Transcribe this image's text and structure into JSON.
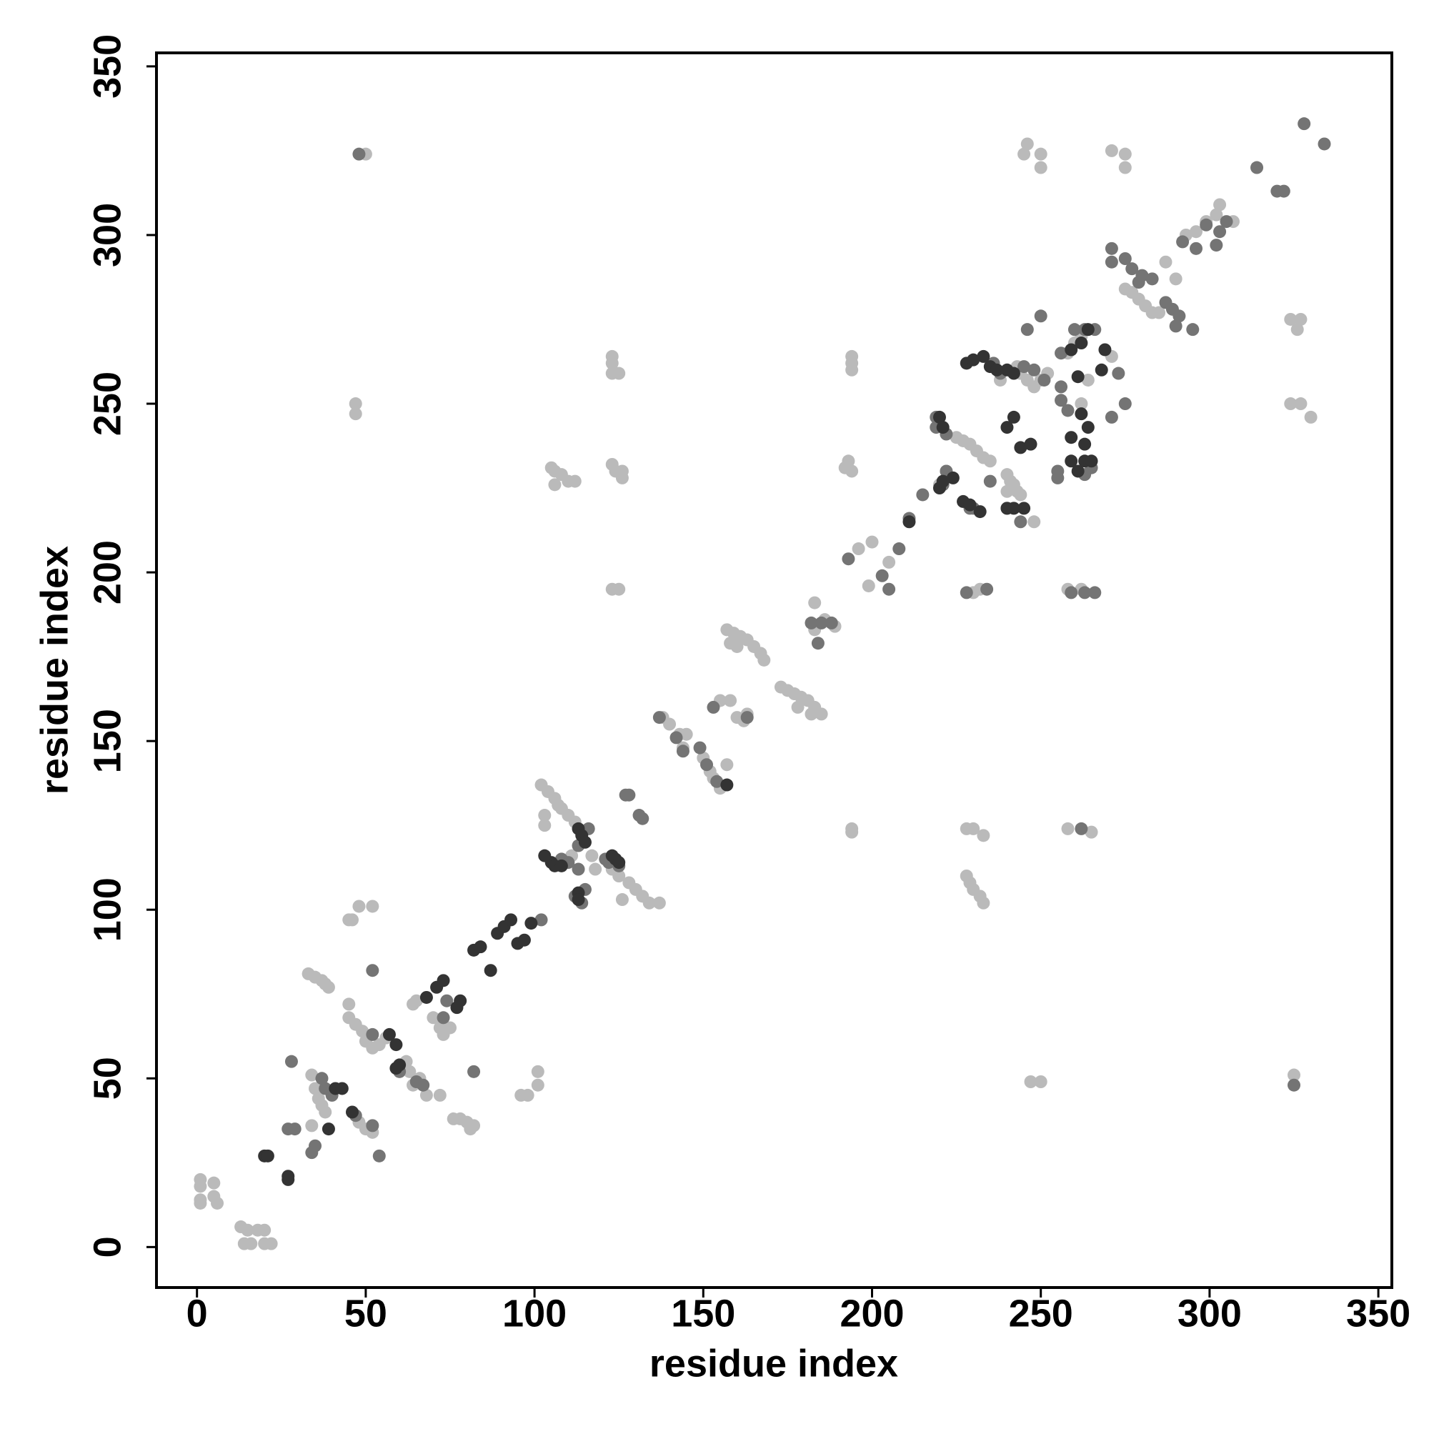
{
  "chart_data": {
    "type": "scatter",
    "xlabel": "residue index",
    "ylabel": "residue index",
    "xlim": [
      -12,
      354
    ],
    "ylim": [
      -12,
      354
    ],
    "xticks": [
      0,
      50,
      100,
      150,
      200,
      250,
      300,
      350
    ],
    "yticks": [
      0,
      50,
      100,
      150,
      200,
      250,
      300,
      350
    ],
    "series": [
      {
        "color": "#bababa",
        "x": [
          1,
          1,
          1,
          1,
          5,
          5,
          6,
          13,
          15,
          18,
          20,
          14,
          16,
          20,
          22,
          34,
          35,
          36,
          37,
          38,
          34,
          33,
          35,
          37,
          38,
          39,
          45,
          46,
          48,
          52,
          45,
          45,
          47,
          49,
          50,
          52,
          54,
          56,
          48,
          50,
          52,
          62,
          63,
          66,
          64,
          68,
          72,
          70,
          72,
          73,
          75,
          65,
          64,
          76,
          78,
          80,
          82,
          81,
          96,
          98,
          101,
          101,
          102,
          104,
          106,
          107,
          108,
          110,
          112,
          103,
          103,
          111,
          117,
          118,
          123,
          125,
          128,
          130,
          132,
          134,
          137,
          126,
          138,
          140,
          143,
          145,
          144,
          150,
          152,
          153,
          155,
          157,
          155,
          158,
          160,
          162,
          163,
          157,
          159,
          161,
          163,
          165,
          167,
          168,
          158,
          160,
          173,
          175,
          177,
          179,
          181,
          183,
          185,
          178,
          182,
          183,
          186,
          189,
          183,
          192,
          193,
          194,
          196,
          200,
          199,
          205,
          105,
          106,
          108,
          110,
          112,
          106,
          123,
          123,
          123,
          125,
          123,
          124,
          126,
          126,
          123,
          125,
          47,
          47,
          50,
          194,
          194,
          194,
          194,
          194,
          225,
          227,
          229,
          231,
          233,
          235,
          222,
          220,
          240,
          241,
          242,
          243,
          244,
          240,
          228,
          229,
          230,
          232,
          233,
          230,
          233,
          228,
          230,
          232,
          246,
          245,
          250,
          250,
          247,
          250,
          244,
          246,
          248,
          250,
          252,
          238,
          243,
          248,
          258,
          260,
          262,
          264,
          262,
          258,
          262,
          258,
          265,
          271,
          275,
          275,
          271,
          275,
          277,
          279,
          281,
          283,
          285,
          287,
          290,
          293,
          296,
          299,
          302,
          303,
          307,
          324,
          327,
          326,
          324,
          327,
          330,
          325
        ],
        "values": [
          20,
          18,
          14,
          13,
          19,
          15,
          13,
          6,
          5,
          5,
          5,
          1,
          1,
          1,
          1,
          51,
          47,
          44,
          42,
          40,
          36,
          81,
          80,
          79,
          78,
          77,
          97,
          97,
          101,
          101,
          72,
          68,
          66,
          64,
          61,
          59,
          60,
          62,
          37,
          35,
          34,
          55,
          52,
          50,
          48,
          45,
          45,
          68,
          65,
          63,
          65,
          73,
          72,
          38,
          38,
          37,
          36,
          35,
          45,
          45,
          52,
          48,
          137,
          135,
          133,
          131,
          130,
          128,
          126,
          128,
          125,
          116,
          116,
          112,
          112,
          110,
          108,
          106,
          104,
          102,
          102,
          103,
          157,
          155,
          152,
          152,
          148,
          145,
          141,
          139,
          136,
          143,
          162,
          162,
          157,
          156,
          158,
          183,
          182,
          181,
          180,
          178,
          176,
          174,
          179,
          178,
          166,
          165,
          164,
          163,
          162,
          160,
          158,
          160,
          158,
          191,
          186,
          184,
          183,
          231,
          233,
          230,
          207,
          209,
          196,
          203,
          231,
          230,
          229,
          227,
          227,
          226,
          264,
          262,
          259,
          259,
          232,
          230,
          230,
          228,
          195,
          195,
          250,
          247,
          324,
          262,
          260,
          264,
          124,
          123,
          240,
          239,
          238,
          236,
          234,
          233,
          230,
          226,
          229,
          227,
          226,
          224,
          223,
          224,
          110,
          108,
          106,
          104,
          102,
          124,
          122,
          124,
          194,
          195,
          327,
          324,
          324,
          320,
          49,
          49,
          259,
          257,
          255,
          257,
          259,
          257,
          261,
          215,
          265,
          268,
          270,
          257,
          250,
          195,
          195,
          124,
          123,
          325,
          324,
          320,
          264,
          284,
          283,
          281,
          279,
          277,
          277,
          292,
          287,
          300,
          301,
          304,
          306,
          309,
          304,
          275,
          275,
          272,
          250,
          250,
          246,
          51
        ]
      },
      {
        "color": "#747474",
        "x": [
          27,
          29,
          34,
          35,
          28,
          37,
          38,
          40,
          47,
          52,
          54,
          52,
          52,
          60,
          65,
          67,
          73,
          74,
          82,
          102,
          108,
          110,
          113,
          115,
          112,
          114,
          116,
          113,
          121,
          122,
          125,
          127,
          128,
          132,
          131,
          137,
          142,
          144,
          149,
          154,
          151,
          153,
          163,
          182,
          185,
          188,
          184,
          193,
          203,
          205,
          211,
          208,
          215,
          219,
          219,
          222,
          222,
          221,
          229,
          230,
          228,
          234,
          235,
          240,
          244,
          250,
          246,
          238,
          236,
          245,
          248,
          251,
          263,
          260,
          266,
          256,
          256,
          256,
          258,
          255,
          255,
          263,
          265,
          259,
          263,
          266,
          262,
          271,
          275,
          273,
          271,
          271,
          275,
          277,
          280,
          283,
          279,
          287,
          289,
          291,
          295,
          290,
          292,
          296,
          299,
          302,
          303,
          305,
          314,
          320,
          322,
          328,
          334,
          325,
          48
        ],
        "values": [
          35,
          35,
          28,
          30,
          55,
          50,
          47,
          45,
          39,
          36,
          27,
          82,
          63,
          52,
          49,
          48,
          68,
          73,
          52,
          97,
          115,
          114,
          112,
          106,
          104,
          102,
          124,
          119,
          115,
          114,
          113,
          134,
          134,
          127,
          128,
          157,
          151,
          147,
          148,
          138,
          143,
          160,
          157,
          185,
          185,
          185,
          179,
          204,
          199,
          195,
          216,
          207,
          223,
          246,
          243,
          241,
          230,
          226,
          219,
          219,
          194,
          195,
          227,
          219,
          215,
          276,
          272,
          259,
          262,
          261,
          260,
          257,
          272,
          272,
          272,
          265,
          255,
          251,
          248,
          230,
          228,
          229,
          231,
          194,
          194,
          194,
          124,
          246,
          250,
          259,
          296,
          292,
          293,
          290,
          288,
          287,
          286,
          280,
          278,
          276,
          272,
          273,
          298,
          296,
          303,
          297,
          301,
          304,
          320,
          313,
          313,
          333,
          327,
          48,
          324
        ]
      },
      {
        "color": "#333333",
        "x": [
          20,
          21,
          27,
          27,
          39,
          41,
          43,
          46,
          59,
          57,
          60,
          59,
          68,
          71,
          73,
          77,
          78,
          82,
          84,
          87,
          89,
          91,
          93,
          95,
          97,
          99,
          103,
          105,
          106,
          108,
          113,
          113,
          113,
          114,
          115,
          123,
          124,
          125,
          157,
          220,
          221,
          220,
          224,
          227,
          232,
          229,
          228,
          230,
          233,
          235,
          237,
          240,
          242,
          240,
          242,
          244,
          247,
          240,
          242,
          245,
          259,
          261,
          263,
          264,
          262,
          263,
          265,
          259,
          259,
          262,
          264,
          269,
          268,
          261,
          211,
          221
        ],
        "values": [
          27,
          27,
          20,
          21,
          35,
          47,
          47,
          40,
          60,
          63,
          54,
          53,
          74,
          77,
          79,
          71,
          73,
          88,
          89,
          82,
          93,
          95,
          97,
          90,
          91,
          96,
          116,
          114,
          113,
          113,
          105,
          103,
          124,
          122,
          120,
          116,
          115,
          114,
          137,
          246,
          243,
          225,
          228,
          221,
          218,
          220,
          262,
          263,
          264,
          261,
          260,
          260,
          259,
          243,
          246,
          237,
          238,
          219,
          219,
          219,
          233,
          230,
          238,
          243,
          247,
          233,
          233,
          240,
          266,
          268,
          272,
          266,
          260,
          258,
          215,
          227
        ]
      }
    ]
  }
}
